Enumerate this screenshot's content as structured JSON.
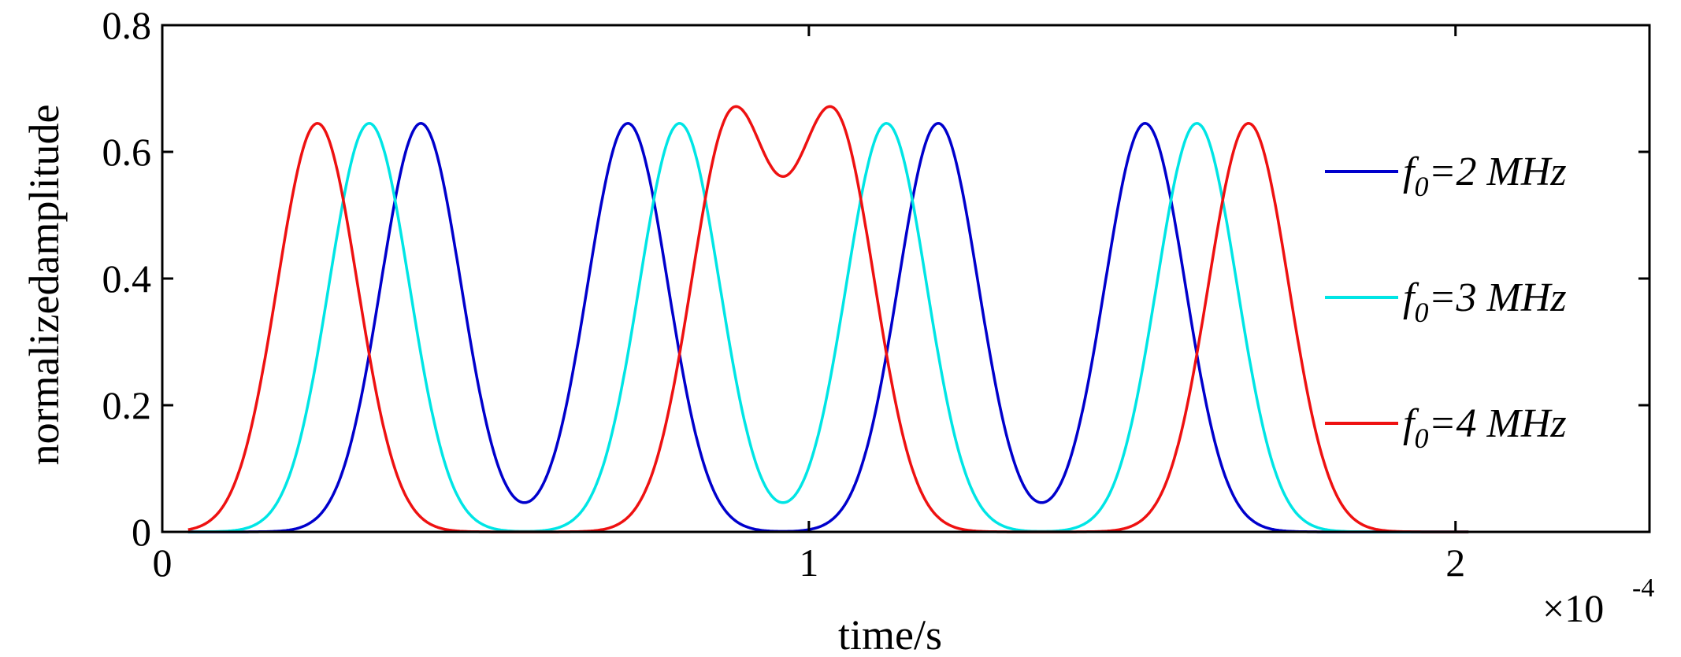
{
  "chart_data": {
    "type": "line",
    "xlabel": "time/s",
    "ylabel": "normalizedamplitude",
    "x_multiplier": {
      "base": "×10",
      "exponent": "-4"
    },
    "xlim": [
      0,
      2.3
    ],
    "ylim": [
      0,
      0.8
    ],
    "x_ticks": [
      0,
      1,
      2
    ],
    "x_tick_labels": [
      "0",
      "1",
      "2"
    ],
    "y_ticks": [
      0,
      0.2,
      0.4,
      0.6,
      0.8
    ],
    "y_tick_labels": [
      "0",
      "0.2",
      "0.4",
      "0.6",
      "0.8"
    ],
    "x_range_data": [
      0.04,
      2.02
    ],
    "grid": false,
    "legend_position": "right",
    "series": [
      {
        "name": "f0=2 MHz",
        "legend": {
          "symbol": "f",
          "sub": "0",
          "rest": "=2 MHz"
        },
        "color": "#0000cc",
        "pulse_centers": [
          0.4,
          0.72,
          1.2,
          1.52
        ],
        "pulse_peak": 0.645,
        "pulse_sigma": 0.062
      },
      {
        "name": "f0=3 MHz",
        "legend": {
          "symbol": "f",
          "sub": "0",
          "rest": "=3 MHz"
        },
        "color": "#00e5e5",
        "pulse_centers": [
          0.32,
          0.8,
          1.12,
          1.6
        ],
        "pulse_peak": 0.645,
        "pulse_sigma": 0.062
      },
      {
        "name": "f0=4 MHz",
        "legend": {
          "symbol": "f",
          "sub": "0",
          "rest": "=4 MHz"
        },
        "color": "#ee1111",
        "pulse_centers": [
          0.24,
          0.88,
          1.04,
          1.68
        ],
        "pulse_peak": 0.645,
        "pulse_sigma": 0.062
      }
    ]
  }
}
